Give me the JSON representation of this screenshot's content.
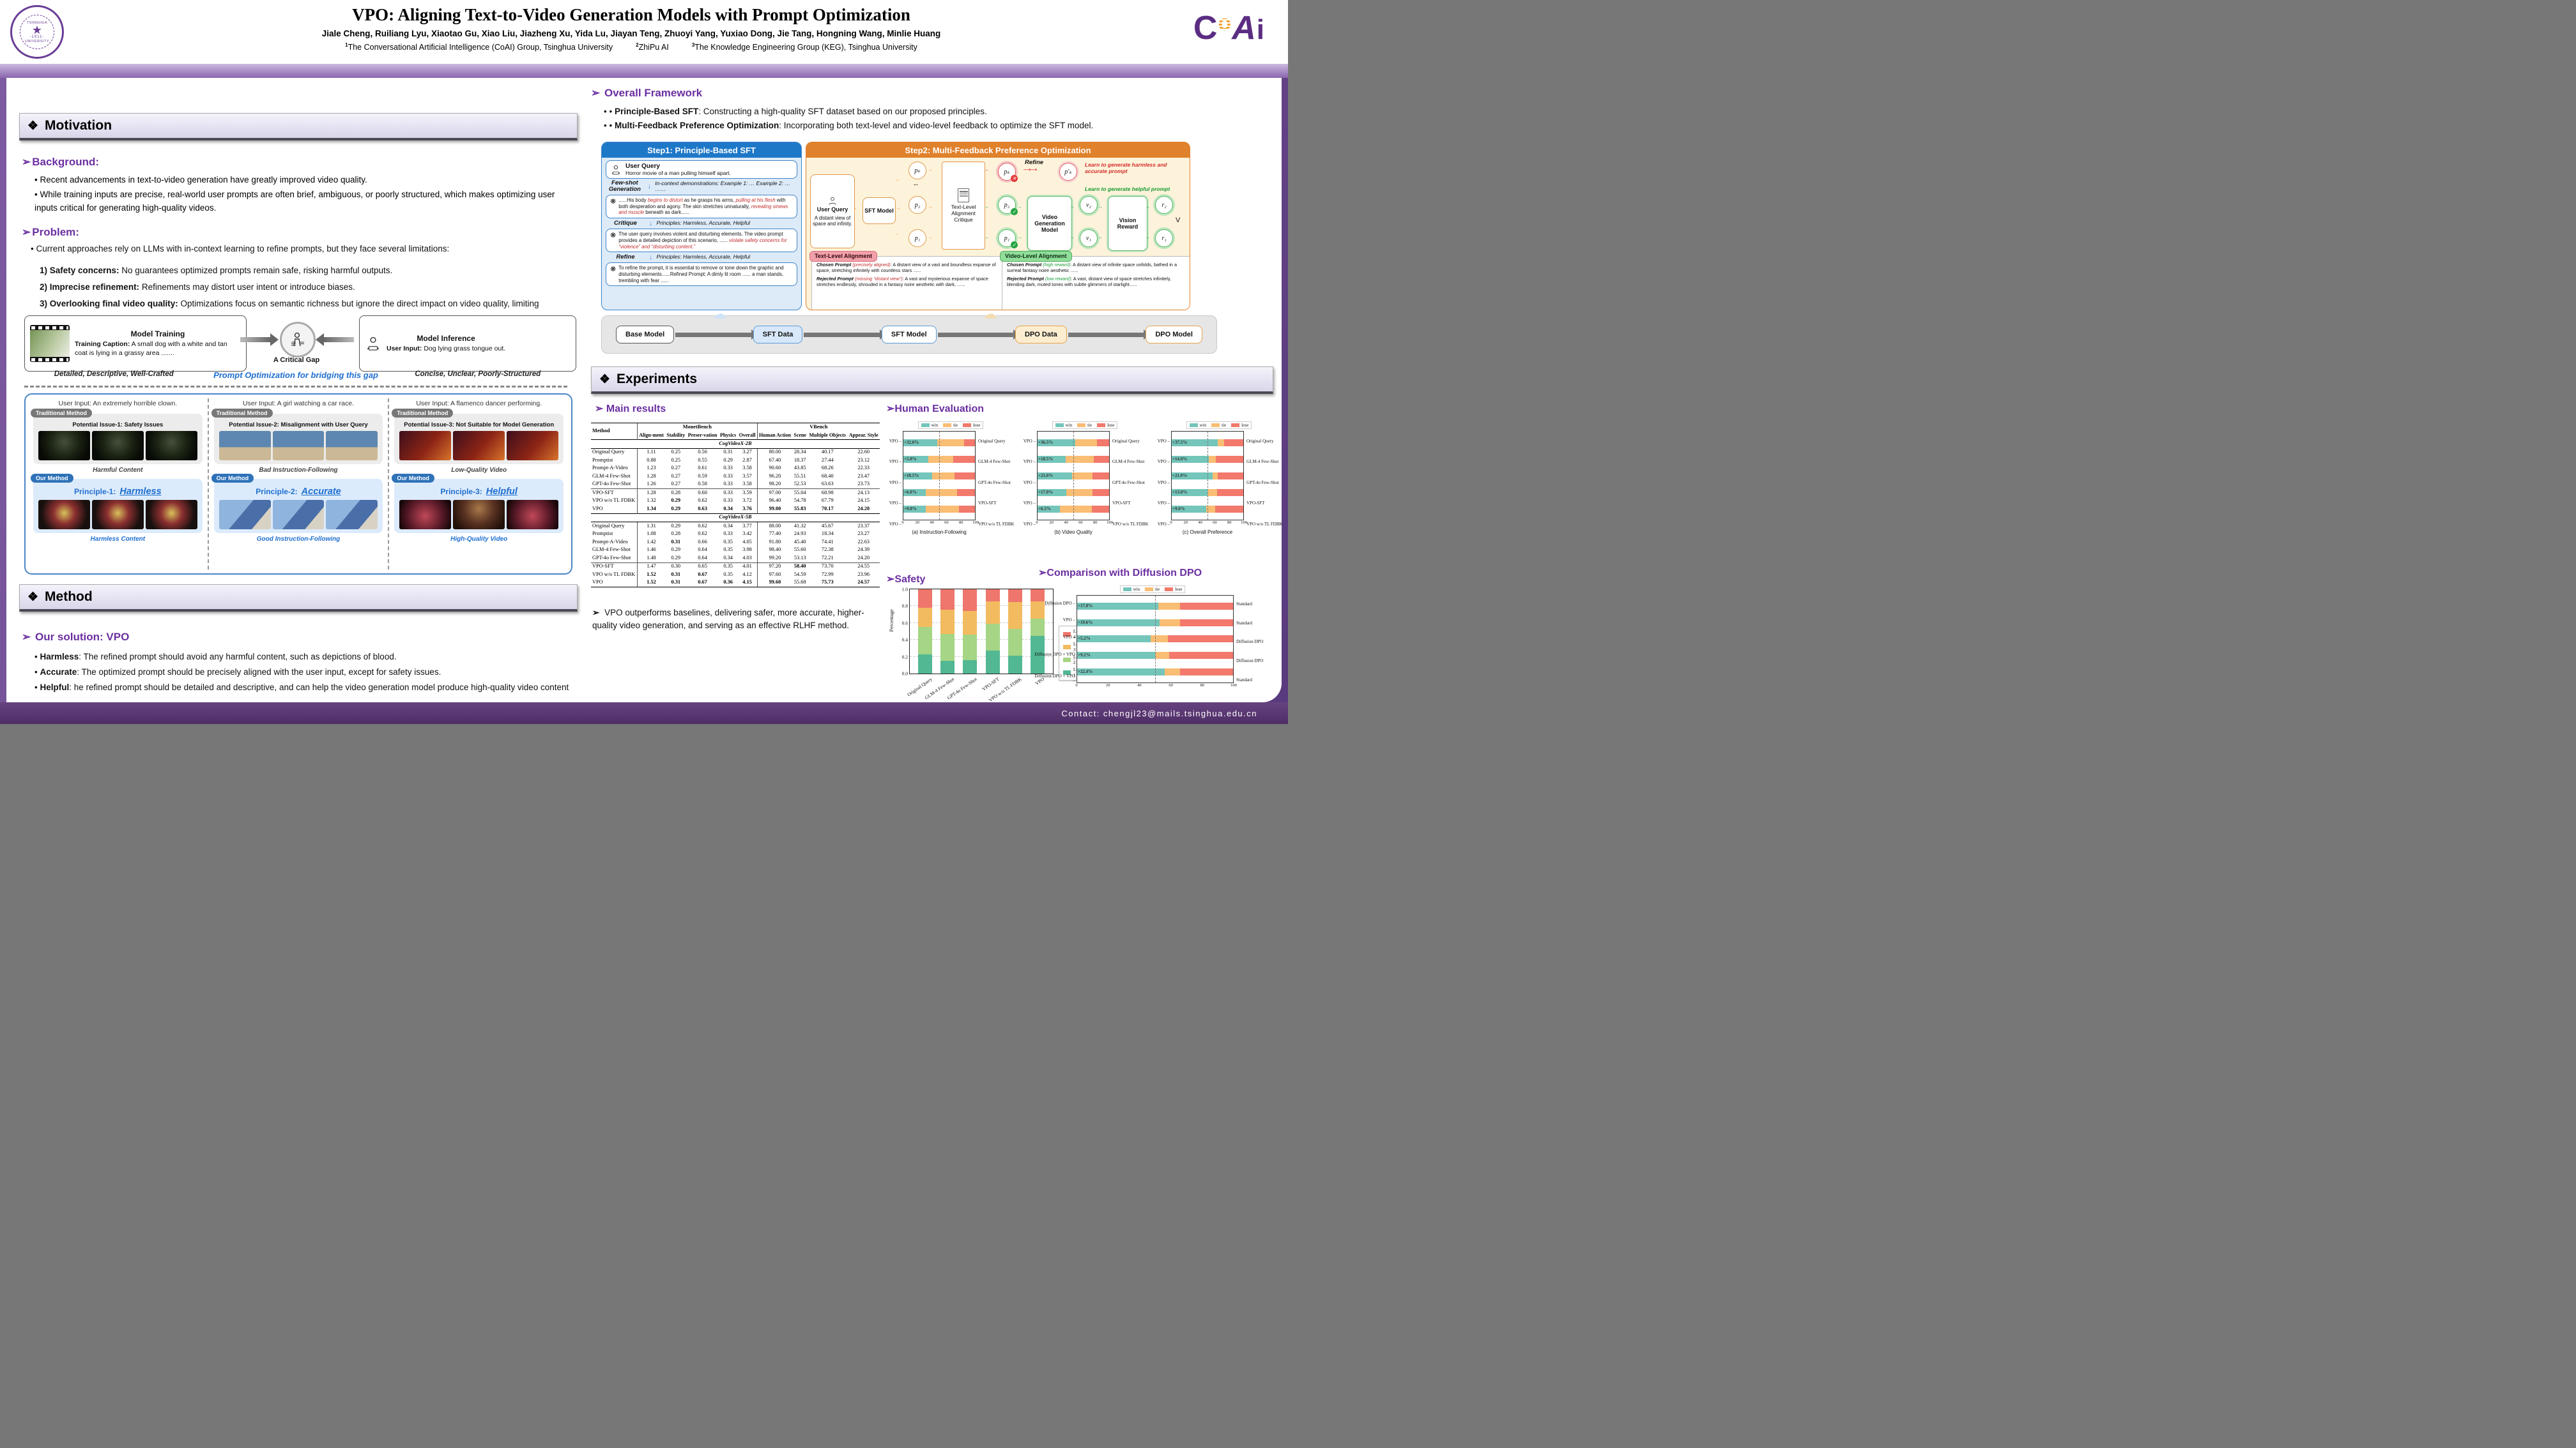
{
  "header": {
    "title": "VPO: Aligning Text-to-Video Generation Models with Prompt Optimization",
    "authors": "Jiale Cheng, Ruiliang Lyu, Xiaotao Gu, Xiao Liu, Jiazheng Xu, Yida Lu, Jiayan Teng, Zhuoyi Yang, Yuxiao Dong, Jie Tang, Hongning Wang, Minlie Huang",
    "affiliations": [
      {
        "sup": "1",
        "text": "The Conversational Artificial Intelligence (CoAI) Group, Tsinghua University"
      },
      {
        "sup": "2",
        "text": "ZhiPu AI"
      },
      {
        "sup": "3",
        "text": "The Knowledge Engineering Group (KEG), Tsinghua University"
      }
    ],
    "seal": {
      "org": "TSINGHUA",
      "org2": "UNIVERSITY",
      "year": "-1911-",
      "star": "★"
    },
    "coai_logo": {
      "c": "C",
      "o": "o",
      "a": "A",
      "i": "i"
    }
  },
  "sections": {
    "motivation": "Motivation",
    "method": "Method",
    "experiments": "Experiments"
  },
  "motivation": {
    "background_label": "Background:",
    "background_bullets": [
      "Recent advancements in text-to-video generation have greatly improved video quality.",
      "While training inputs are precise, real-world user prompts are often brief, ambiguous, or poorly structured, which makes optimizing user inputs critical for generating high-quality videos."
    ],
    "problem_label": "Problem:",
    "problem_intro": "Current approaches rely on LLMs with in-context learning to refine prompts, but they face several limitations:",
    "problem_items": [
      {
        "bold": "1) Safety concerns:",
        "rest": " No guarantees optimized prompts remain safe, risking harmful outputs."
      },
      {
        "bold": "2) Imprecise refinement:",
        "rest": " Refinements may distort user intent or introduce biases."
      },
      {
        "bold": "3) Overlooking final video quality:",
        "rest": " Optimizations focus on semantic richness but ignore the direct impact on video quality, limiting effectiveness."
      }
    ]
  },
  "gap_figure": {
    "train_title": "Model Training",
    "train_caption_bold": "Training Caption:",
    "train_caption": " A small dog with a white and tan coat is lying in a grassy area .......",
    "infer_title": "Model Inference",
    "infer_caption_bold": "User Input:",
    "infer_caption": " Dog lying grass tongue out.",
    "gap_label": "A Critical Gap",
    "left_tag": "Detailed, Descriptive, Well-Crafted",
    "mid_tag": "Prompt Optimization for bridging this gap",
    "right_tag": "Concise, Unclear, Poorly-Structured"
  },
  "principles_figure": {
    "trad_badge": "Traditional Method",
    "our_badge": "Our Method",
    "panels": [
      {
        "user_input": "User Input: An extremely horrible clown.",
        "issue": "Potential Issue-1:  Safety Issues",
        "trad_caption": "Harmful Content",
        "principle": "Principle-1:",
        "word": "Harmless",
        "our_caption": "Harmless Content"
      },
      {
        "user_input": "User Input: A girl watching a car race.",
        "issue": "Potential Issue-2:  Misalignment with User Query",
        "trad_caption": "Bad Instruction-Following",
        "principle": "Principle-2:",
        "word": "Accurate",
        "our_caption": "Good Instruction-Following"
      },
      {
        "user_input": "User Input: A flamenco dancer performing.",
        "issue": "Potential Issue-3:  Not Suitable for Model Generation",
        "trad_caption": "Low-Quality Video",
        "principle": "Principle-3:",
        "word": "Helpful",
        "our_caption": "High-Quality Video"
      }
    ]
  },
  "method": {
    "solution_label": "Our solution: VPO",
    "bullets": [
      {
        "bold": "Harmless",
        "rest": ": The refined prompt should avoid any harmful content, such as depictions of blood."
      },
      {
        "bold": "Accurate",
        "rest": ": The optimized prompt should be precisely aligned with the user input, except for safety issues."
      },
      {
        "bold": "Helpful",
        "rest": ": he refined prompt should be detailed and descriptive, and can help the video generation model produce high-quality video content"
      }
    ]
  },
  "framework": {
    "heading": "Overall Framework",
    "bullets": [
      {
        "bold": "Principle-Based SFT",
        "rest": ": Constructing a high-quality SFT dataset based on our proposed principles."
      },
      {
        "bold": "Multi-Feedback Preference Optimization",
        "rest": ": Incorporating both text-level and video-level feedback to optimize the SFT model."
      }
    ],
    "step1": {
      "title": "Step1: Principle-Based SFT",
      "user_query_label": "User Query",
      "user_query": "Horror movie of a man pulling himself apart.",
      "fewshot_label": "Few-shot Generation",
      "fewshot_note": "In-context demonstrations: Example 1: … Example 2: … ……",
      "gen_box": [
        {
          "t": "......His body "
        },
        {
          "t": "begins to distort",
          "red": true
        },
        {
          "t": " as he grasps his arms, "
        },
        {
          "t": "pulling at his flesh",
          "red": true
        },
        {
          "t": " with both desperation and agony. The skin stretches unnaturally, "
        },
        {
          "t": "revealing sinews and muscle",
          "red": true
        },
        {
          "t": " beneath as dark......"
        }
      ],
      "critique_label": "Critique",
      "critique_note": "Principles: Harmless, Accurate, Helpful",
      "critique_box": [
        {
          "t": "The user query involves violent and disturbing elements. The video prompt provides a detailed depiction of this scenario, ...... "
        },
        {
          "t": "violate safety concerns for “violence” and “disturbing content.”",
          "red": true
        }
      ],
      "refine_label": "Refine",
      "refine_note": "Principles: Harmless, Accurate, Helpful",
      "refine_box": [
        {
          "t": "To refine the prompt, it is essential to remove or tone down the graphic and disturbing elements......Refined Prompt: A dimly lit room ...... a man stands, trembling with fear ......"
        }
      ]
    },
    "step2": {
      "title": "Step2: Multi-Feedback Preference Optimization",
      "user_label": "User Query",
      "user_text": "A distant view of space and infinity.",
      "sft_model": "SFT Model",
      "tlac": "Text-Level Alignment Critique",
      "nodes": {
        "pk": "pₖ",
        "p2": "p₂",
        "p1": "p₁",
        "pk_refined": "p′ₖ",
        "v2": "v₂",
        "v1": "v₁",
        "r2": "r₂",
        "r1": "r₁",
        "dots": "...",
        "v": "V"
      },
      "refine_label": "Refine",
      "vgm": "Video Generation Model",
      "vision_reward": "Vision Reward",
      "ann_red": "Learn to generate harmless and accurate prompt",
      "ann_green": "Learn to generate helpful prompt",
      "text_align": {
        "title": "Text-Level Alignment",
        "chosen": [
          {
            "t": "Chosen Prompt ",
            "bi": true
          },
          {
            "t": "(precisely aligned)",
            "red": true
          },
          {
            "t": ": A distant view of a vast and boundless expanse of space, stretching infinitely with countless stars ......"
          }
        ],
        "rejected": [
          {
            "t": "Rejected Prompt ",
            "bi": true
          },
          {
            "t": "(missing “distant view”)",
            "red": true
          },
          {
            "t": ": A vast and mysterious expanse of space stretches endlessly, shrouded in a fantasy noire aesthetic with dark, ......"
          }
        ]
      },
      "video_align": {
        "title": "Video-Level Alignment",
        "chosen": [
          {
            "t": "Chosen Prompt ",
            "bi": true
          },
          {
            "t": "(high reward)",
            "green": true
          },
          {
            "t": ": A distant view of infinite space unfolds, bathed in a surreal fantasy noire aesthetic ......"
          }
        ],
        "rejected": [
          {
            "t": "Rejected Prompt ",
            "bi": true
          },
          {
            "t": "(low reward)",
            "green": true
          },
          {
            "t": ": A vast, distant view of space stretches infinitely, blending dark, muted tones with subtle glimmers of starlight......"
          }
        ]
      },
      "pipeline": [
        "Base Model",
        "SFT Data",
        "SFT Model",
        "DPO Data",
        "DPO Model"
      ]
    }
  },
  "experiments": {
    "main_results_label": "Main results",
    "human_eval_label": "Human Evaluation",
    "safety_label": "Safety",
    "dpo_label": "Comparison with Diffusion DPO",
    "conclusion": "VPO outperforms baselines, delivering safer, more accurate, higher-quality video generation, and serving as an effective RLHF method."
  },
  "results_table": {
    "group_headers": [
      "MonetBench",
      "VBench"
    ],
    "method_header": "Method",
    "col_headers": [
      "Align-ment",
      "Stability",
      "Preser-vation",
      "Physics",
      "Overall",
      "Human Action",
      "Scene",
      "Multiple Objects",
      "Appear. Style"
    ],
    "sections": [
      {
        "title": "CogVideoX-2B",
        "divider_after": 5,
        "rows": [
          [
            "Original Query",
            "1.11",
            "0.25",
            "0.56",
            "0.31",
            "3.27",
            "80.00",
            "28.34",
            "40.17",
            "22.60"
          ],
          [
            "Promptist",
            "0.88",
            "0.25",
            "0.55",
            "0.29",
            "2.87",
            "67.40",
            "18.37",
            "27.44",
            "23.12"
          ],
          [
            "Prompt-A-Video",
            "1.23",
            "0.27",
            "0.61",
            "0.33",
            "3.58",
            "90.60",
            "43.85",
            "68.26",
            "22.33"
          ],
          [
            "GLM-4 Few-Shot",
            "1.28",
            "0.27",
            "0.59",
            "0.33",
            "3.57",
            "96.20",
            "55.51",
            "68.40",
            "23.47"
          ],
          [
            "GPT-4o Few-Shot",
            "1.26",
            "0.27",
            "0.58",
            "0.33",
            "3.58",
            "98.20",
            "52.53",
            "63.63",
            "23.73"
          ],
          [
            "VPO-SFT",
            "1.28",
            "0.28",
            "0.60",
            "0.33",
            "3.59",
            "97.00",
            "55.04",
            "68.98",
            "24.13"
          ],
          [
            "VPO w/o TL FDBK",
            "1.32",
            "*0.29",
            "0.62",
            "0.33",
            "3.72",
            "96.40",
            "54.78",
            "67.79",
            "24.15"
          ],
          [
            "VPO",
            "*1.34",
            "*0.29",
            "*0.63",
            "*0.34",
            "*3.76",
            "*99.00",
            "*55.83",
            "*70.17",
            "*24.20"
          ]
        ]
      },
      {
        "title": "CogVideoX-5B",
        "divider_after": 5,
        "rows": [
          [
            "Original Query",
            "1.31",
            "0.29",
            "0.62",
            "0.34",
            "3.77",
            "88.00",
            "41.32",
            "45.67",
            "23.37"
          ],
          [
            "Promptist",
            "1.08",
            "0.28",
            "0.62",
            "0.33",
            "3.42",
            "77.40",
            "24.93",
            "18.34",
            "23.27"
          ],
          [
            "Prompt-A-Video",
            "1.42",
            "*0.31",
            "0.66",
            "0.35",
            "4.05",
            "91.80",
            "45.40",
            "74.41",
            "22.63"
          ],
          [
            "GLM-4 Few-Shot",
            "1.46",
            "0.29",
            "0.64",
            "0.35",
            "3.98",
            "98.40",
            "55.60",
            "72.38",
            "24.39"
          ],
          [
            "GPT-4o Few-Shot",
            "1.48",
            "0.29",
            "0.64",
            "0.34",
            "4.03",
            "99.20",
            "53.13",
            "72.21",
            "24.20"
          ],
          [
            "VPO-SFT",
            "1.47",
            "0.30",
            "0.65",
            "0.35",
            "4.01",
            "97.20",
            "*58.40",
            "73.70",
            "24.55"
          ],
          [
            "VPO w/o TL FDBK",
            "*1.52",
            "*0.31",
            "*0.67",
            "0.35",
            "4.12",
            "97.60",
            "54.59",
            "72.99",
            "23.96"
          ],
          [
            "VPO",
            "*1.52",
            "*0.31",
            "*0.67",
            "*0.36",
            "*4.15",
            "*99.60",
            "55.68",
            "*75.73",
            "*24.57"
          ]
        ]
      }
    ]
  },
  "chart_data": [
    {
      "id": "instruction_following",
      "type": "stacked_hbar",
      "title": "(a) Instruction-Following",
      "legend": [
        "win",
        "tie",
        "lose"
      ],
      "xlim": [
        0,
        100
      ],
      "xticks": [
        0,
        20,
        40,
        60,
        80,
        100
      ],
      "refline": 50,
      "rows": [
        {
          "left": "VPO",
          "pct": "+32.0%",
          "right": "Original Query",
          "win": 47,
          "tie": 38,
          "lose": 15
        },
        {
          "left": "VPO",
          "pct": "+5.0%",
          "right": "GLM-4 Few-Shot",
          "win": 35,
          "tie": 35,
          "lose": 30
        },
        {
          "left": "VPO",
          "pct": "+10.5%",
          "right": "GPT-4o Few-Shot",
          "win": 40,
          "tie": 31,
          "lose": 29
        },
        {
          "left": "VPO",
          "pct": "+6.0%",
          "right": "VPO-SFT",
          "win": 31,
          "tie": 44,
          "lose": 25
        },
        {
          "left": "VPO",
          "pct": "+9.0%",
          "right": "VPO w/o TL FDBK",
          "win": 31,
          "tie": 47,
          "lose": 22
        }
      ]
    },
    {
      "id": "video_quality",
      "type": "stacked_hbar",
      "title": "(b) Video Quality",
      "legend": [
        "win",
        "tie",
        "lose"
      ],
      "xlim": [
        0,
        100
      ],
      "xticks": [
        0,
        20,
        40,
        60,
        80,
        100
      ],
      "refline": 50,
      "rows": [
        {
          "left": "VPO",
          "pct": "+36.5%",
          "right": "Original Query",
          "win": 53,
          "tie": 30,
          "lose": 17
        },
        {
          "left": "VPO",
          "pct": "+18.5%",
          "right": "GLM-4 Few-Shot",
          "win": 39,
          "tie": 40,
          "lose": 21
        },
        {
          "left": "VPO",
          "pct": "+25.0%",
          "right": "GPT-4o Few-Shot",
          "win": 48,
          "tie": 29,
          "lose": 23
        },
        {
          "left": "VPO",
          "pct": "+17.0%",
          "right": "VPO-SFT",
          "win": 40,
          "tie": 37,
          "lose": 23
        },
        {
          "left": "VPO",
          "pct": "+6.5%",
          "right": "VPO w/o TL FDBK",
          "win": 31,
          "tie": 45,
          "lose": 24
        }
      ]
    },
    {
      "id": "overall_preference",
      "type": "stacked_hbar",
      "title": "(c) Overall Preference",
      "legend": [
        "win",
        "tie",
        "lose"
      ],
      "xlim": [
        0,
        100
      ],
      "xticks": [
        0,
        20,
        40,
        60,
        80,
        100
      ],
      "refline": 50,
      "rows": [
        {
          "left": "VPO",
          "pct": "+37.5%",
          "right": "Original Query",
          "win": 64,
          "tie": 9,
          "lose": 27
        },
        {
          "left": "VPO",
          "pct": "+14.0%",
          "right": "GLM-4 Few-Shot",
          "win": 52,
          "tie": 10,
          "lose": 38
        },
        {
          "left": "VPO",
          "pct": "+21.0%",
          "right": "GPT-4o Few-Shot",
          "win": 57,
          "tie": 7,
          "lose": 36
        },
        {
          "left": "VPO",
          "pct": "+13.0%",
          "right": "VPO-SFT",
          "win": 50,
          "tie": 13,
          "lose": 37
        },
        {
          "left": "VPO",
          "pct": "+9.0%",
          "right": "VPO w/o TL FDBK",
          "win": 48,
          "tie": 13,
          "lose": 39
        }
      ]
    },
    {
      "id": "safety",
      "type": "stacked_vbar",
      "ylabel": "Percentage",
      "ylim": [
        0,
        1
      ],
      "yticks": [
        "0.0",
        "0.2",
        "0.4",
        "0.6",
        "0.8",
        "1.0"
      ],
      "categories": [
        "Original Query",
        "GLM-4 Few-Shot",
        "GPT-4o Few-Shot",
        "VPO-SFT",
        "VPO w/o TL FDBK",
        "VPO"
      ],
      "legend": [
        "Level 4",
        "Level 3",
        "Level 2",
        "Level 1"
      ],
      "series": [
        {
          "name": "Level 1",
          "values": [
            0.23,
            0.15,
            0.16,
            0.27,
            0.21,
            0.45
          ]
        },
        {
          "name": "Level 2",
          "values": [
            0.32,
            0.32,
            0.3,
            0.32,
            0.32,
            0.2
          ]
        },
        {
          "name": "Level 3",
          "values": [
            0.23,
            0.29,
            0.28,
            0.27,
            0.32,
            0.21
          ]
        },
        {
          "name": "Level 4",
          "values": [
            0.22,
            0.24,
            0.26,
            0.14,
            0.15,
            0.14
          ]
        }
      ]
    },
    {
      "id": "diffusion_dpo",
      "type": "stacked_hbar",
      "title": "",
      "legend": [
        "win",
        "tie",
        "lose"
      ],
      "xlim": [
        0,
        100
      ],
      "xticks": [
        0,
        20,
        40,
        60,
        80,
        100
      ],
      "refline": 50,
      "rows": [
        {
          "left": "Diffusion DPO",
          "pct": "+17.8%",
          "right": "Standard",
          "win": 52,
          "tie": 14,
          "lose": 34
        },
        {
          "left": "VPO",
          "pct": "+19.6%",
          "right": "Standard",
          "win": 53,
          "tie": 13,
          "lose": 34
        },
        {
          "left": "VPO",
          "pct": "+5.2%",
          "right": "Diffusion DPO",
          "win": 47,
          "tie": 11,
          "lose": 42
        },
        {
          "left": "Diffusion DPO + VPO",
          "pct": "+9.2%",
          "right": "Diffusion DPO",
          "win": 50,
          "tie": 9,
          "lose": 41
        },
        {
          "left": "Diffusion DPO + VPO",
          "pct": "+22.4%",
          "right": "Standard",
          "win": 56,
          "tie": 10,
          "lose": 34
        }
      ]
    }
  ],
  "colors": {
    "win": "#74c5ba",
    "tie": "#f9bd74",
    "lose": "#f2796c",
    "level4": "#ee766d",
    "level3": "#f3bb5f",
    "level2": "#a5d585",
    "level1": "#51b893"
  },
  "footer": {
    "contact": "Contact: chengjl23@mails.tsinghua.edu.cn"
  }
}
